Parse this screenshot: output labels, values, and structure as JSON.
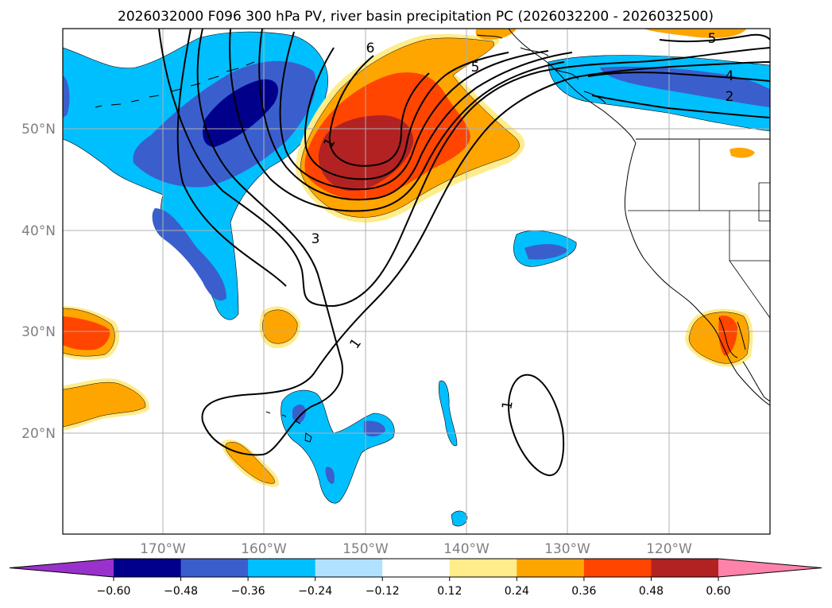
{
  "title": "2026032000 F096 300 hPa PV, river basin precipitation PC (2026032200 - 2026032500)",
  "lat_labels": [
    "50°N",
    "40°N",
    "30°N",
    "20°N"
  ],
  "lon_labels": [
    "170°W",
    "160°W",
    "150°W",
    "140°W",
    "130°W",
    "120°W"
  ],
  "colorbar": {
    "colors": [
      "#9932CC",
      "#00008B",
      "#3A5FCD",
      "#00BFFF",
      "#B0E2FF",
      "#FFFFFF",
      "#FFEC8B",
      "#FFA500",
      "#FF4500",
      "#B22222",
      "#FF82AB"
    ],
    "labels": [
      "−0.60",
      "−0.48",
      "−0.36",
      "−0.24",
      "−0.12",
      "0.12",
      "0.24",
      "0.36",
      "0.48",
      "0.60"
    ]
  },
  "contour_labels": [
    "6",
    "5",
    "5",
    "4",
    "2",
    "1",
    "3",
    "1",
    "1"
  ]
}
